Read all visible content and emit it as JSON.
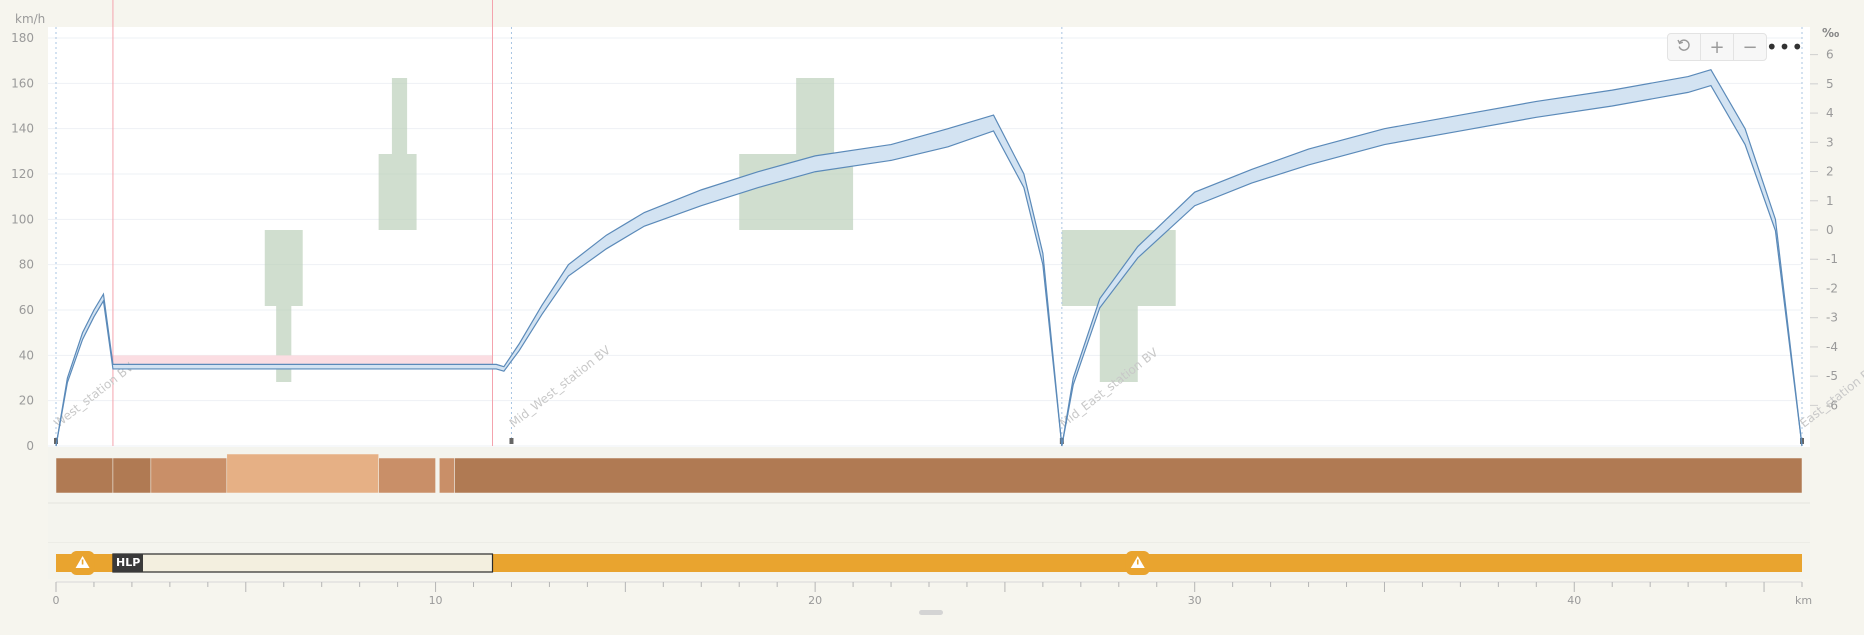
{
  "toolbar": {
    "reset_icon": "reset-icon",
    "zoom_in_icon": "plus-icon",
    "zoom_out_icon": "minus-icon",
    "more_icon": "more-icon"
  },
  "chart_data": {
    "type": "line",
    "x_unit": "km",
    "y_unit_left": "km/h",
    "y_unit_right": "‰",
    "xlim": [
      0,
      46
    ],
    "ylim_left": [
      0,
      180
    ],
    "ylim_right": [
      -6.5,
      6.5
    ],
    "x_ticks": [
      0,
      10,
      20,
      30,
      40
    ],
    "x_tick_labels": [
      "0",
      "10",
      "20",
      "30",
      "40"
    ],
    "y_ticks_left": [
      0,
      20,
      40,
      60,
      80,
      100,
      120,
      140,
      160,
      180
    ],
    "y_tick_labels_left": [
      "0",
      "20",
      "40",
      "60",
      "80",
      "100",
      "120",
      "140",
      "160",
      "180"
    ],
    "y_ticks_right": [
      -6,
      -5,
      -4,
      -3,
      -2,
      -1,
      0,
      1,
      2,
      3,
      4,
      5,
      6
    ],
    "y_tick_labels_right": [
      "-6",
      "-5",
      "-4",
      "-3",
      "-2",
      "-1",
      "0",
      "1",
      "2",
      "3",
      "4",
      "5",
      "6"
    ],
    "colors": {
      "speed_line": "#5b8ab9",
      "speed_band": "#d3e3f2",
      "slope": "#b7cdb5",
      "restriction_line": "#c0304a",
      "restriction_band": "#fbdde2",
      "restriction_boundary": "#f4a3ad",
      "electrification": "#e9a42f",
      "power_dark": "#b07a53",
      "power_mid": "#c98f68",
      "power_light": "#e6b085"
    },
    "stations": [
      {
        "name": "West_station BV",
        "x": 0
      },
      {
        "name": "Mid_West_station BV",
        "x": 12.0
      },
      {
        "name": "Mid_East_station BV",
        "x": 26.5
      },
      {
        "name": "East_station BV",
        "x": 46
      }
    ],
    "speed_upper": [
      [
        0,
        0
      ],
      [
        0.3,
        30
      ],
      [
        0.7,
        50
      ],
      [
        1.0,
        60
      ],
      [
        1.25,
        67
      ],
      [
        1.5,
        36
      ],
      [
        11.6,
        36
      ],
      [
        11.8,
        35
      ],
      [
        12.2,
        45
      ],
      [
        12.8,
        62
      ],
      [
        13.5,
        80
      ],
      [
        14.5,
        93
      ],
      [
        15.5,
        103
      ],
      [
        17,
        113
      ],
      [
        18.5,
        121
      ],
      [
        20,
        128
      ],
      [
        22,
        133
      ],
      [
        23.5,
        140
      ],
      [
        24.7,
        146
      ],
      [
        25.5,
        120
      ],
      [
        26.0,
        85
      ],
      [
        26.5,
        0
      ],
      [
        26.8,
        30
      ],
      [
        27.5,
        65
      ],
      [
        28.5,
        88
      ],
      [
        30,
        112
      ],
      [
        31.5,
        122
      ],
      [
        33,
        131
      ],
      [
        35,
        140
      ],
      [
        37,
        146
      ],
      [
        39,
        152
      ],
      [
        41,
        157
      ],
      [
        43,
        163
      ],
      [
        43.6,
        166
      ],
      [
        44.5,
        140
      ],
      [
        45.3,
        100
      ],
      [
        46,
        0
      ]
    ],
    "speed_lower": [
      [
        0,
        0
      ],
      [
        0.3,
        28
      ],
      [
        0.7,
        47
      ],
      [
        1.0,
        57
      ],
      [
        1.25,
        64
      ],
      [
        1.5,
        34
      ],
      [
        11.6,
        34
      ],
      [
        11.8,
        33
      ],
      [
        12.2,
        42
      ],
      [
        12.8,
        58
      ],
      [
        13.5,
        75
      ],
      [
        14.5,
        87
      ],
      [
        15.5,
        97
      ],
      [
        17,
        106
      ],
      [
        18.5,
        114
      ],
      [
        20,
        121
      ],
      [
        22,
        126
      ],
      [
        23.5,
        132
      ],
      [
        24.7,
        139
      ],
      [
        25.5,
        114
      ],
      [
        26.0,
        80
      ],
      [
        26.5,
        0
      ],
      [
        26.8,
        27
      ],
      [
        27.5,
        61
      ],
      [
        28.5,
        83
      ],
      [
        30,
        106
      ],
      [
        31.5,
        116
      ],
      [
        33,
        124
      ],
      [
        35,
        133
      ],
      [
        37,
        139
      ],
      [
        39,
        145
      ],
      [
        41,
        150
      ],
      [
        43,
        156
      ],
      [
        43.6,
        159
      ],
      [
        44.5,
        133
      ],
      [
        45.3,
        95
      ],
      [
        46,
        0
      ]
    ],
    "slope_blocks": [
      {
        "x0": 5.5,
        "x1": 6.5,
        "s0": 0,
        "s1": -2.6
      },
      {
        "x0": 5.8,
        "x1": 6.2,
        "s0": -2.6,
        "s1": -5.2
      },
      {
        "x0": 8.5,
        "x1": 9.5,
        "s0": 0,
        "s1": 2.6
      },
      {
        "x0": 8.85,
        "x1": 9.25,
        "s0": 2.6,
        "s1": 5.2
      },
      {
        "x0": 18.0,
        "x1": 21.0,
        "s0": 0,
        "s1": 2.6
      },
      {
        "x0": 19.5,
        "x1": 20.5,
        "s0": 2.6,
        "s1": 5.2
      },
      {
        "x0": 26.5,
        "x1": 29.5,
        "s0": 0,
        "s1": -2.6
      },
      {
        "x0": 27.5,
        "x1": 28.5,
        "s0": -2.6,
        "s1": -5.2
      }
    ],
    "speed_restriction": {
      "x0": 1.5,
      "x1": 11.5,
      "speed": 35,
      "band": [
        35,
        40
      ]
    },
    "power_segments": [
      {
        "x0": 0,
        "x1": 1.5,
        "shade": "dark"
      },
      {
        "x0": 1.5,
        "x1": 2.5,
        "shade": "dark"
      },
      {
        "x0": 2.5,
        "x1": 4.5,
        "shade": "mid"
      },
      {
        "x0": 4.5,
        "x1": 8.5,
        "shade": "light"
      },
      {
        "x0": 8.5,
        "x1": 10.0,
        "shade": "mid"
      },
      {
        "x0": 10.1,
        "x1": 10.5,
        "shade": "mid"
      },
      {
        "x0": 10.5,
        "x1": 46,
        "shade": "dark"
      }
    ],
    "electrification": {
      "x0": 0,
      "x1": 46
    },
    "hlp_zone": {
      "label": "HLP",
      "x0": 1.5,
      "x1": 11.5
    },
    "warnings": [
      {
        "x": 0.7
      },
      {
        "x": 28.5
      }
    ]
  }
}
